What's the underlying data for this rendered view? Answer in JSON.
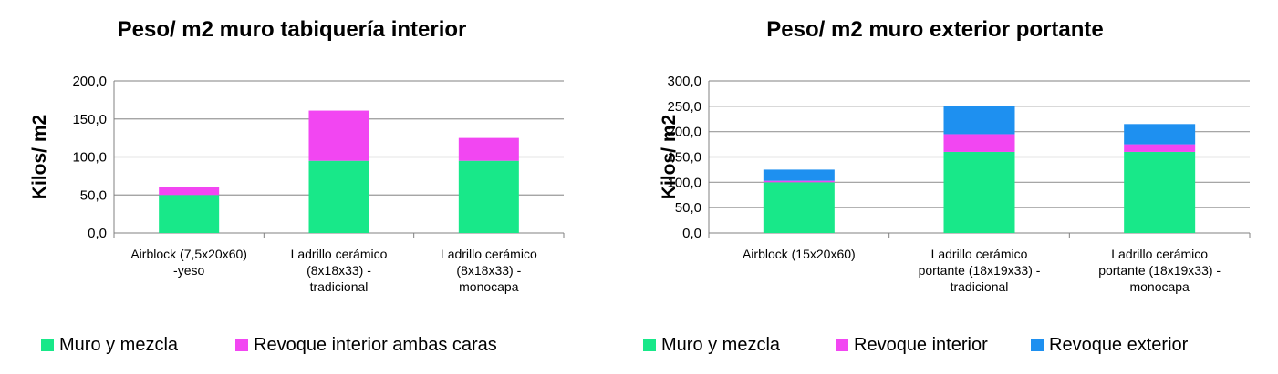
{
  "colors": {
    "muro": "#18E889",
    "revoque_interior": "#F246F2",
    "revoque_exterior": "#1E90F0",
    "grid": "#9A9A9A"
  },
  "chart_data": [
    {
      "type": "bar",
      "stacked": true,
      "title": "Peso/ m2 muro tabiquería interior",
      "ylabel": "Kilos/ m2",
      "xlabel": "",
      "ylim": [
        0,
        200
      ],
      "yticks": [
        "0,0",
        "50,0",
        "100,0",
        "150,0",
        "200,0"
      ],
      "grid": true,
      "legend_position": "bottom",
      "categories": [
        [
          "Airblock (7,5x20x60)",
          "-yeso"
        ],
        [
          "Ladrillo cerámico",
          "(8x18x33) -",
          "tradicional"
        ],
        [
          "Ladrillo cerámico",
          "(8x18x33) -",
          "monocapa"
        ]
      ],
      "series": [
        {
          "name": "Muro y mezcla",
          "color": "#18E889",
          "values": [
            50,
            95,
            95
          ]
        },
        {
          "name": "Revoque interior ambas caras",
          "color": "#F246F2",
          "values": [
            10,
            66,
            30
          ]
        }
      ]
    },
    {
      "type": "bar",
      "stacked": true,
      "title": "Peso/ m2 muro exterior portante",
      "ylabel": "Kilos/ m2",
      "xlabel": "",
      "ylim": [
        0,
        300
      ],
      "yticks": [
        "0,0",
        "50,0",
        "100,0",
        "150,0",
        "200,0",
        "250,0",
        "300,0"
      ],
      "grid": true,
      "legend_position": "bottom",
      "categories": [
        [
          "Airblock (15x20x60)"
        ],
        [
          "Ladrillo cerámico",
          "portante (18x19x33) -",
          "tradicional"
        ],
        [
          "Ladrillo cerámico",
          "portante (18x19x33) -",
          "monocapa"
        ]
      ],
      "series": [
        {
          "name": "Muro y mezcla",
          "color": "#18E889",
          "values": [
            100,
            160,
            160
          ]
        },
        {
          "name": "Revoque interior",
          "color": "#F246F2",
          "values": [
            3,
            35,
            15
          ]
        },
        {
          "name": "Revoque exterior",
          "color": "#1E90F0",
          "values": [
            22,
            55,
            40
          ]
        }
      ]
    }
  ]
}
